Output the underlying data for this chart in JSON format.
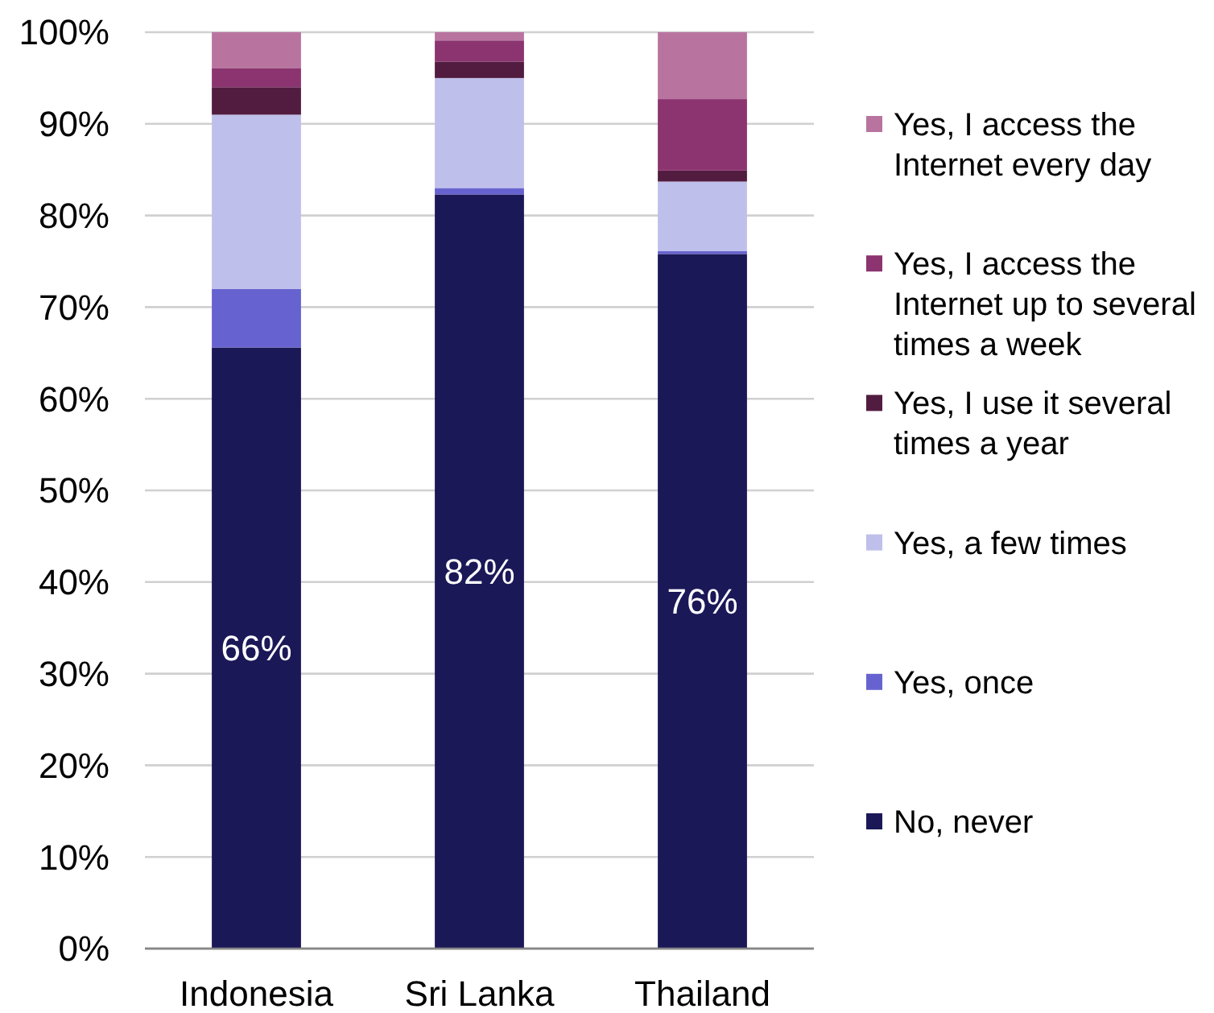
{
  "chart_data": {
    "type": "bar",
    "stacked": true,
    "categories": [
      "Indonesia",
      "Sri Lanka",
      "Thailand"
    ],
    "series": [
      {
        "name": "No, never",
        "color": "#1b1858",
        "values": [
          65.6,
          82.3,
          75.8
        ],
        "value_labels": [
          "66%",
          "82%",
          "76%"
        ]
      },
      {
        "name": "Yes, once",
        "color": "#6663d0",
        "values": [
          6.4,
          0.7,
          0.3
        ]
      },
      {
        "name": "Yes, a few times",
        "color": "#bfbfeb",
        "values": [
          19.0,
          12.0,
          7.6
        ]
      },
      {
        "name": "Yes, I use it several times a year",
        "color": "#521c40",
        "values": [
          3.0,
          1.8,
          1.2
        ]
      },
      {
        "name": "Yes, I access the Internet up to several times a week",
        "color": "#8b3470",
        "values": [
          2.1,
          2.3,
          7.8
        ]
      },
      {
        "name": "Yes, I access the Internet every day",
        "color": "#b8749f",
        "values": [
          3.9,
          0.9,
          7.3
        ]
      }
    ],
    "ylim": [
      0,
      100
    ],
    "yticks": [
      {
        "value": 0,
        "label": "0%"
      },
      {
        "value": 10,
        "label": "10%"
      },
      {
        "value": 20,
        "label": "20%"
      },
      {
        "value": 30,
        "label": "30%"
      },
      {
        "value": 40,
        "label": "40%"
      },
      {
        "value": 50,
        "label": "50%"
      },
      {
        "value": 60,
        "label": "60%"
      },
      {
        "value": 70,
        "label": "70%"
      },
      {
        "value": 80,
        "label": "80%"
      },
      {
        "value": 90,
        "label": "90%"
      },
      {
        "value": 100,
        "label": "100%"
      }
    ],
    "grid": "y",
    "legend": "right"
  }
}
